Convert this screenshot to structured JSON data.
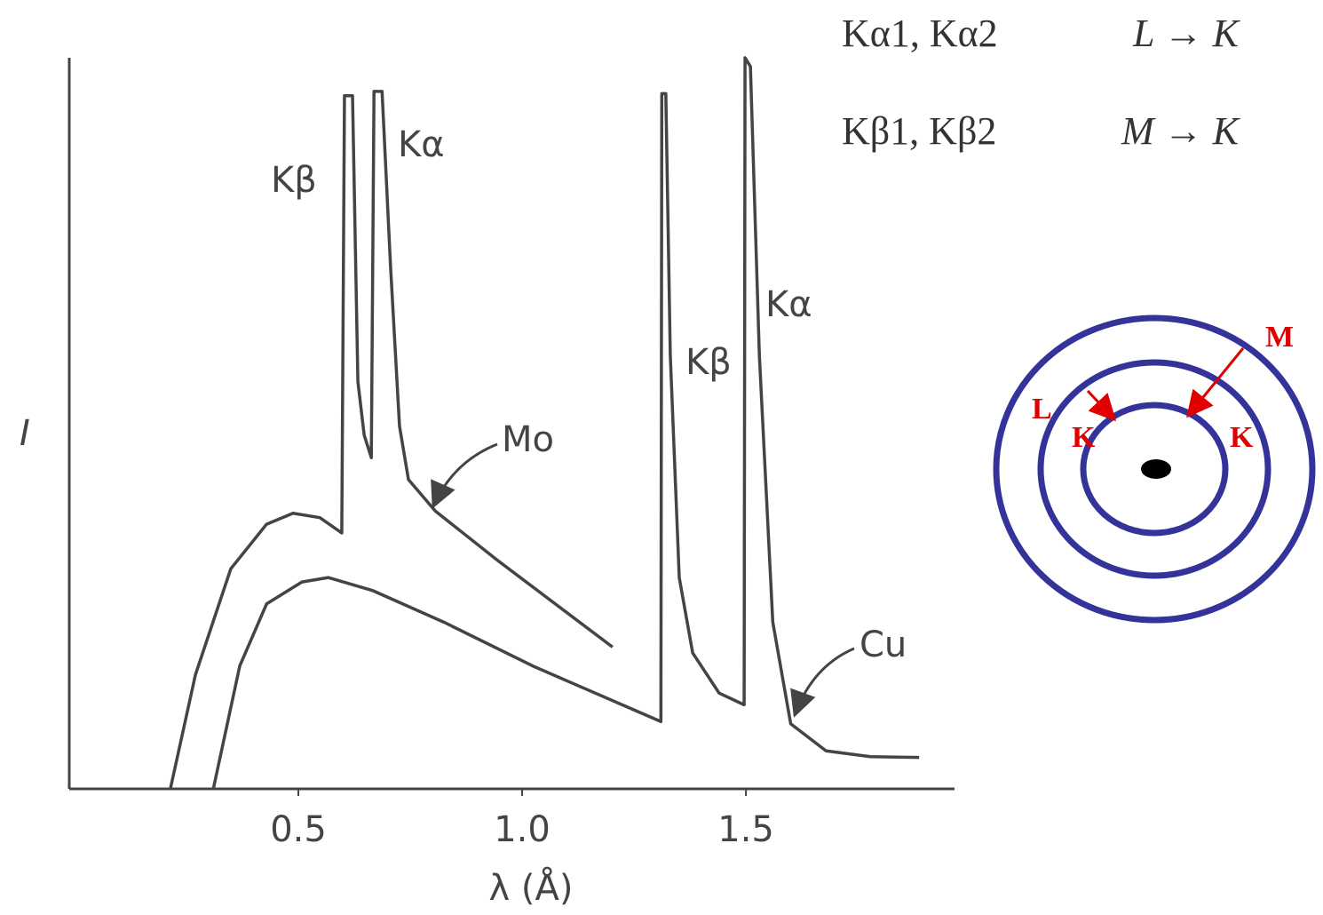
{
  "chart_data": {
    "type": "line",
    "x_label": "λ (Å)",
    "y_label": "I",
    "xlim": [
      0,
      1.97
    ],
    "ylim": [
      0,
      100
    ],
    "xticks": [
      0.5,
      {
        "value": 1,
        "label": "1.0"
      },
      1.5
    ],
    "series": [
      {
        "name": "Mo",
        "color": "#444444",
        "x": [
          0.214,
          0.27,
          0.349,
          0.429,
          0.488,
          0.548,
          0.597,
          0.603,
          0.621,
          0.633,
          0.647,
          0.663,
          0.669,
          0.687,
          0.706,
          0.726,
          0.746,
          0.806,
          0.944,
          1.202
        ],
        "values": [
          0,
          15.6,
          30.1,
          36.2,
          37.7,
          37.1,
          35.0,
          94.8,
          94.8,
          55.7,
          48.4,
          45.3,
          95.4,
          95.4,
          71.4,
          49.6,
          42.3,
          38.0,
          31.3,
          19.4
        ]
      },
      {
        "name": "Cu",
        "color": "#444444",
        "x": [
          0.31,
          0.369,
          0.429,
          0.508,
          0.567,
          0.667,
          0.825,
          1.024,
          1.31,
          1.312,
          1.321,
          1.331,
          1.351,
          1.381,
          1.44,
          1.496,
          1.498,
          1.51,
          1.53,
          1.56,
          1.6,
          1.679,
          1.778,
          1.887
        ],
        "values": [
          0,
          16.8,
          25.3,
          28.3,
          28.9,
          27.1,
          22.8,
          16.8,
          9.2,
          95.1,
          95.1,
          59.3,
          28.9,
          18.6,
          13.1,
          11.5,
          100,
          98.8,
          59.3,
          22.8,
          8.9,
          5.2,
          4.4,
          4.3
        ]
      }
    ],
    "annotations": [
      "Kβ",
      "Kα",
      "Kβ",
      "Kα"
    ]
  },
  "transitions": [
    {
      "lines": "Kα1, Kα2",
      "shells": "L → K"
    },
    {
      "lines": "Kβ1, Kβ2",
      "shells": "M → K"
    }
  ],
  "shell_labels": [
    "M",
    "L",
    "K",
    "K"
  ]
}
